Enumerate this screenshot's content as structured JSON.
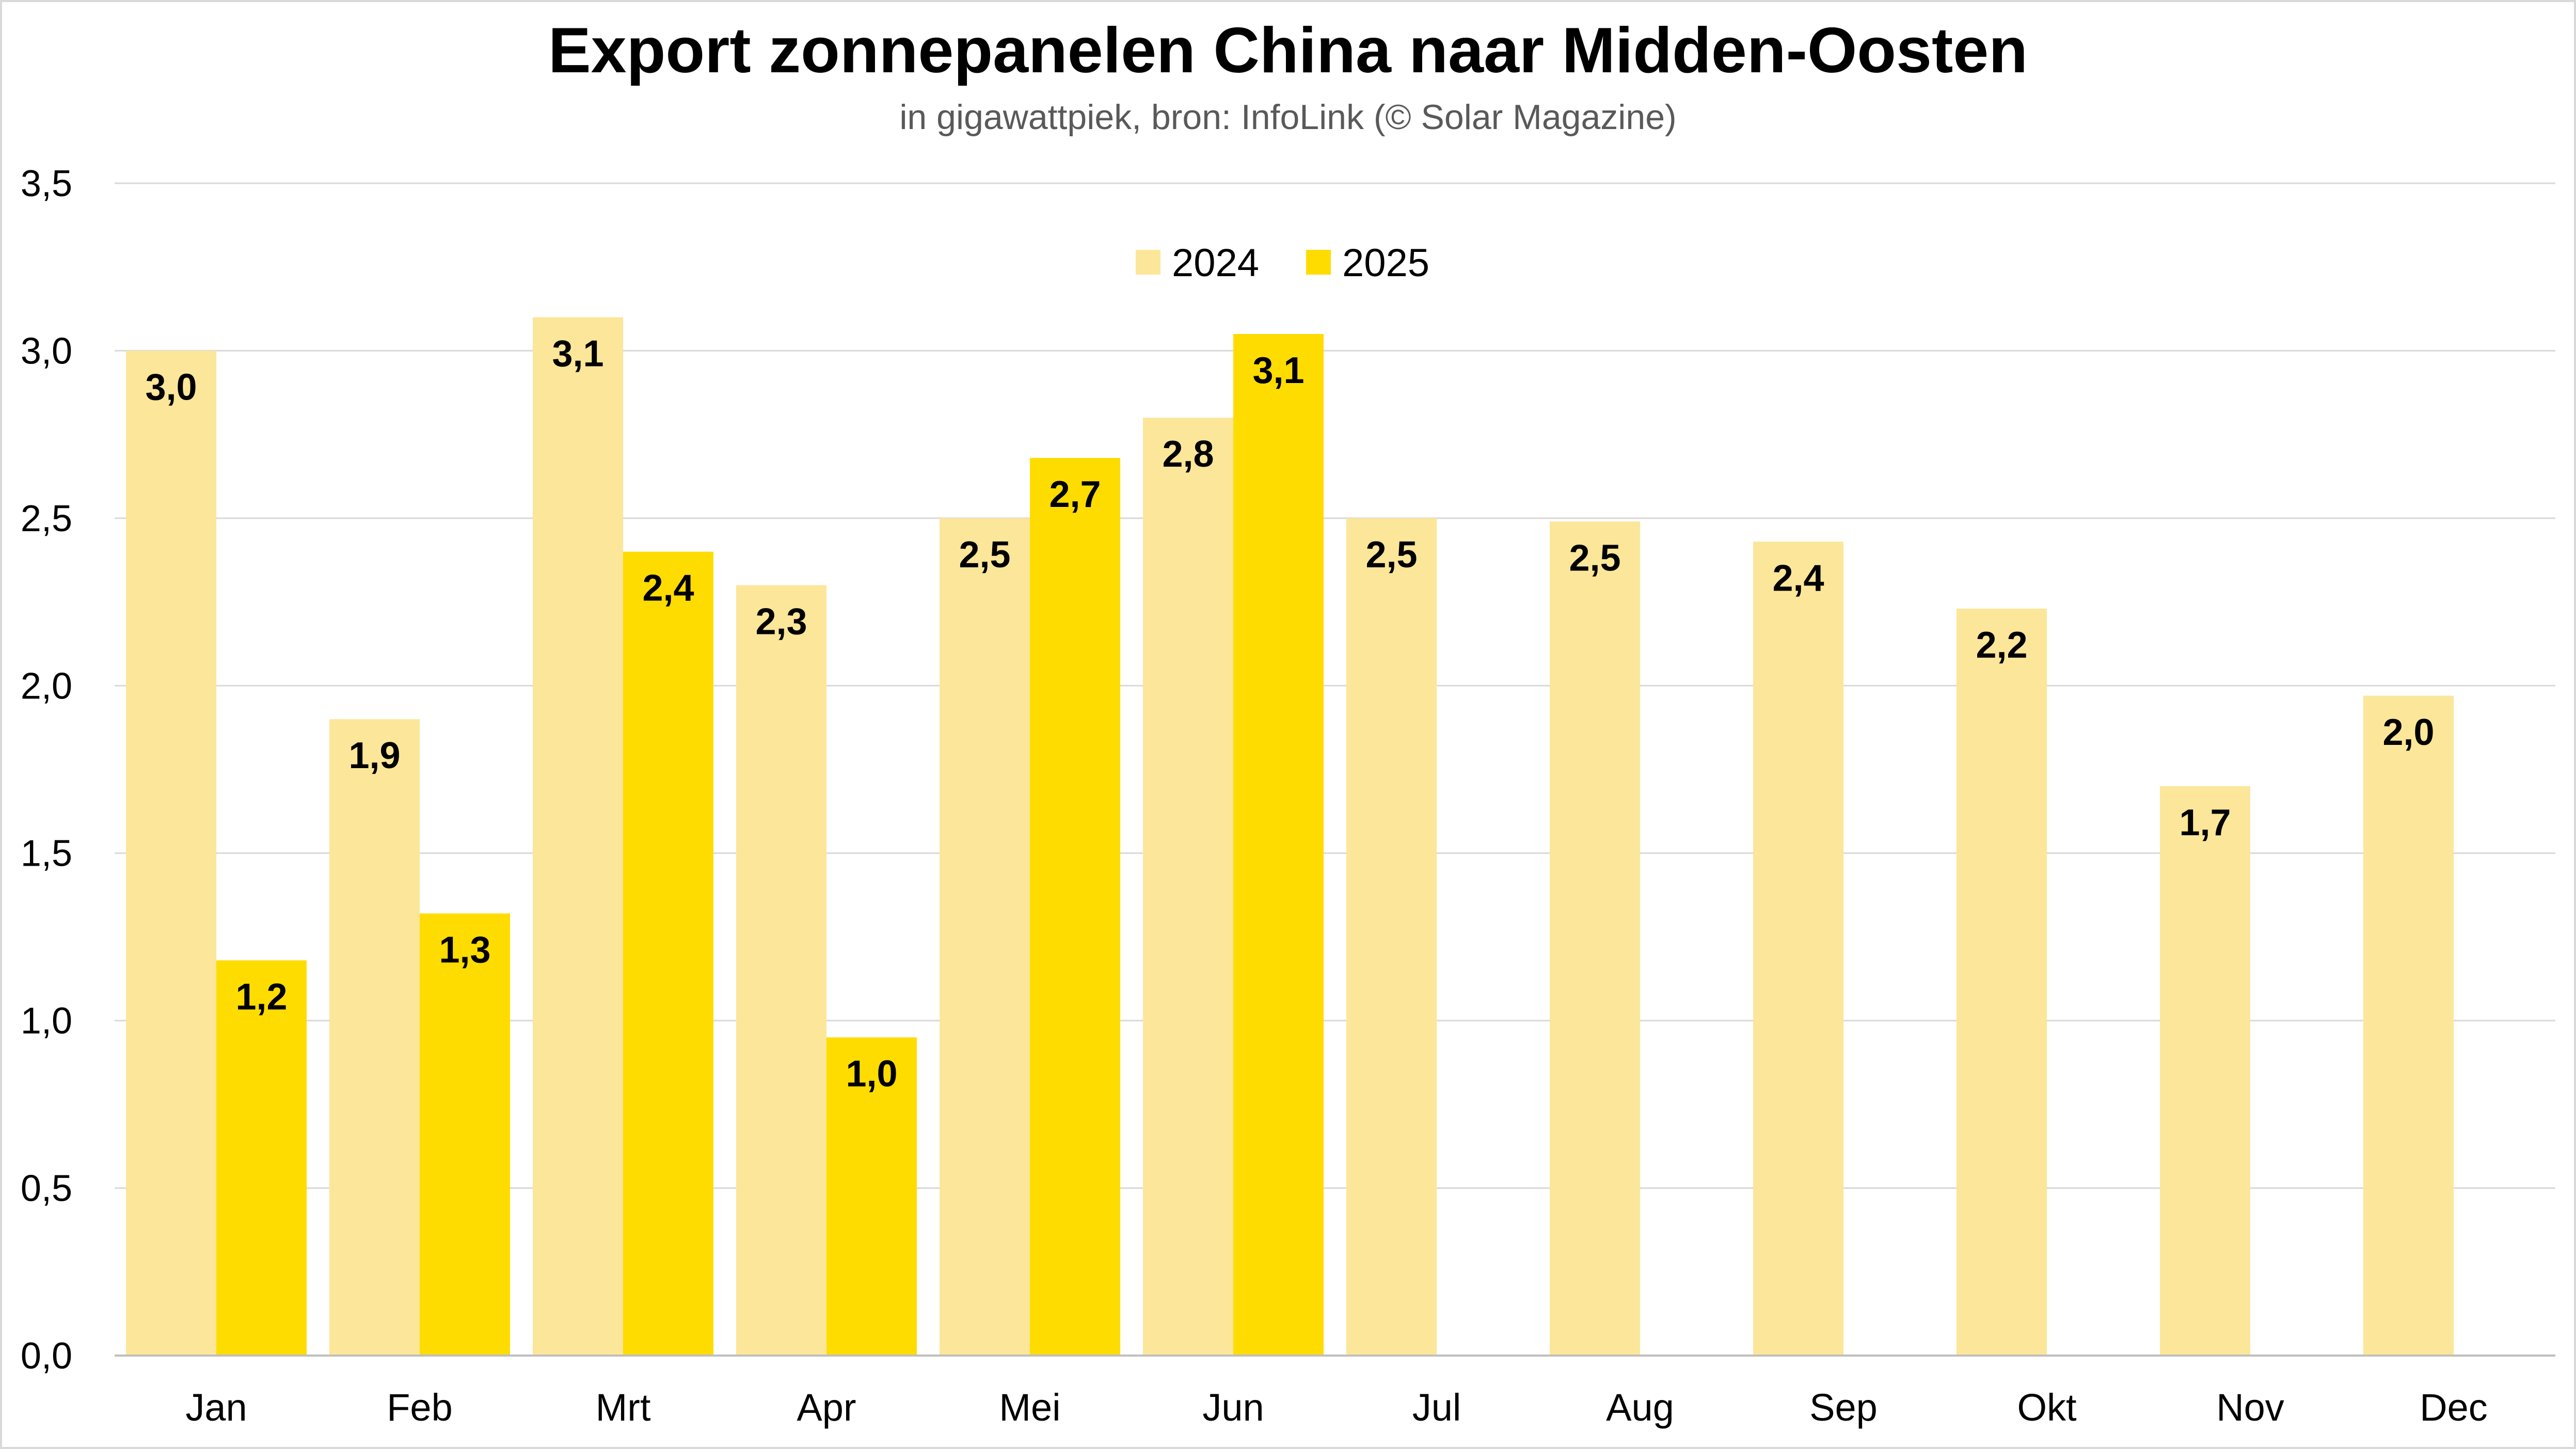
{
  "chart_data": {
    "type": "bar",
    "title": "Export zonnepanelen China naar Midden-Oosten",
    "subtitle": "in gigawattpiek, bron: InfoLink (© Solar Magazine)",
    "xlabel": "",
    "ylabel": "",
    "ylim": [
      0,
      3.5
    ],
    "yticks": [
      "0,0",
      "0,5",
      "1,0",
      "1,5",
      "2,0",
      "2,5",
      "3,0",
      "3,5"
    ],
    "ytick_values": [
      0,
      0.5,
      1.0,
      1.5,
      2.0,
      2.5,
      3.0,
      3.5
    ],
    "grid": true,
    "legend_position": "top-center",
    "categories": [
      "Jan",
      "Feb",
      "Mrt",
      "Apr",
      "Mei",
      "Jun",
      "Jul",
      "Aug",
      "Sep",
      "Okt",
      "Nov",
      "Dec"
    ],
    "series": [
      {
        "name": "2024",
        "color": "#FCE699",
        "values": [
          3.0,
          1.9,
          3.1,
          2.3,
          2.5,
          2.8,
          2.5,
          2.49,
          2.43,
          2.23,
          1.7,
          1.97
        ],
        "labels": [
          "3,0",
          "1,9",
          "3,1",
          "2,3",
          "2,5",
          "2,8",
          "2,5",
          "2,5",
          "2,4",
          "2,2",
          "1,7",
          "2,0"
        ]
      },
      {
        "name": "2025",
        "color": "#FFDC00",
        "values": [
          1.18,
          1.32,
          2.4,
          0.95,
          2.68,
          3.05,
          null,
          null,
          null,
          null,
          null,
          null
        ],
        "labels": [
          "1,2",
          "1,3",
          "2,4",
          "1,0",
          "2,7",
          "3,1",
          "",
          "",
          "",
          "",
          "",
          ""
        ]
      }
    ],
    "gridline_color": "#D9D9D9",
    "axis_color": "#BFBFBF"
  }
}
